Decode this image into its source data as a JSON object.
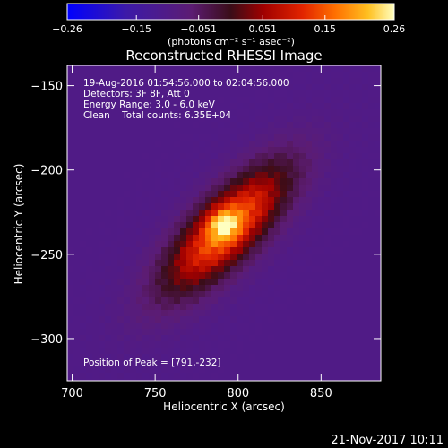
{
  "chart_data": {
    "type": "heatmap",
    "title": "Reconstructed RHESSI Image",
    "xlabel": "Heliocentric X (arcsec)",
    "ylabel": "Heliocentric Y (arcsec)",
    "xlim": [
      697,
      886
    ],
    "ylim": [
      -325,
      -138
    ],
    "x_ticks": [
      700,
      750,
      800,
      850
    ],
    "y_ticks": [
      -150,
      -200,
      -250,
      -300
    ],
    "colorbar": {
      "label": "(photons cm⁻² s⁻¹ asec⁻²)",
      "range": [
        -0.26,
        0.26
      ],
      "tick_labels": [
        "-0.26",
        "-0.15",
        "-0.051",
        "0.051",
        "0.15",
        "0.26"
      ]
    },
    "annotations": {
      "time": "19-Aug-2016 01:54:56.000 to 02:04:56.000",
      "detectors": "Detectors: 3F 8F, Att 0",
      "energy": "Energy Range: 3.0 - 6.0 keV",
      "clean": "Clean    Total counts: 6.35E+04",
      "peak": "Position of Peak = [791,-232]"
    },
    "peak": {
      "x": 791,
      "y": -232,
      "value": 0.26
    },
    "background_value": -0.1,
    "source_model": {
      "center": [
        793,
        -235
      ],
      "orientation_deg": 45,
      "extent_along_arcsec": 120,
      "extent_across_arcsec": 45
    }
  },
  "footer": {
    "timestamp": "21-Nov-2017 10:11"
  }
}
